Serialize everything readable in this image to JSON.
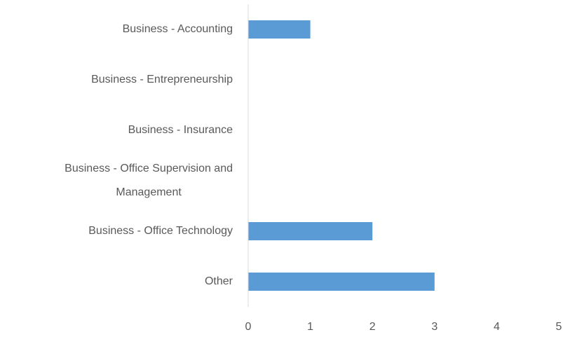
{
  "chart_data": {
    "type": "barh",
    "categories": [
      "Business - Accounting",
      "Business - Entrepreneurship",
      "Business - Insurance",
      "Business - Office Supervision and Management",
      "Business - Office Technology",
      "Other"
    ],
    "values": [
      1,
      0,
      0,
      0,
      2,
      3
    ],
    "color": "#5b9bd5",
    "xlim": [
      0,
      5
    ],
    "xticks": [
      0,
      1,
      2,
      3,
      4,
      5
    ],
    "grid": false
  }
}
